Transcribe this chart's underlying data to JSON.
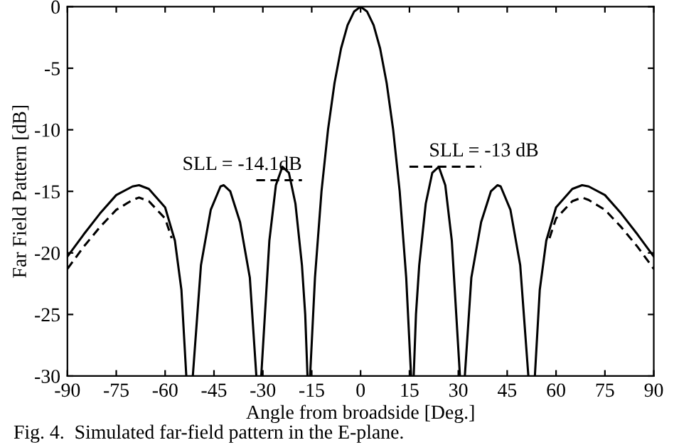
{
  "chart_data": {
    "type": "line",
    "xlabel": "Angle from broadside [Deg.]",
    "ylabel": "Far Field Pattern [dB]",
    "xlim": [
      -90,
      90
    ],
    "ylim": [
      -30,
      0
    ],
    "xticks": [
      -90,
      -75,
      -60,
      -45,
      -30,
      -15,
      0,
      15,
      30,
      45,
      60,
      75,
      90
    ],
    "yticks": [
      0,
      -5,
      -10,
      -15,
      -20,
      -25,
      -30
    ],
    "grid": false,
    "legend": false,
    "series": [
      {
        "color": "#000000",
        "line_style": "solid",
        "x": [
          -90,
          -85,
          -80,
          -75,
          -70,
          -68,
          -65,
          -60,
          -57,
          -55,
          -53.5,
          -53,
          -51.5,
          -49,
          -46,
          -43,
          -42,
          -40,
          -37,
          -34,
          -32,
          -31.5,
          -30.5,
          -28,
          -26,
          -24,
          -22,
          -20,
          -18,
          -17,
          -16.3,
          -16,
          -15.5,
          -14,
          -12,
          -10,
          -8,
          -6,
          -4,
          -2,
          0,
          2,
          4,
          6,
          8,
          10,
          12,
          14,
          15.5,
          16,
          16.3,
          17,
          18,
          20,
          22,
          24,
          26,
          28,
          30.5,
          31.5,
          32,
          34,
          37,
          40,
          42,
          43,
          46,
          49,
          51.5,
          53,
          53.5,
          55,
          57,
          60,
          65,
          68,
          70,
          75,
          80,
          85,
          90
        ],
        "values": [
          -20.3,
          -18.5,
          -16.8,
          -15.3,
          -14.6,
          -14.5,
          -14.8,
          -16.3,
          -19,
          -23,
          -30,
          null,
          -30,
          -21,
          -16.5,
          -14.6,
          -14.5,
          -15,
          -17.5,
          -22,
          -30,
          null,
          -30,
          -19,
          -14.5,
          -13,
          -13.5,
          -16,
          -21,
          -25,
          -30,
          null,
          -30,
          -22,
          -15,
          -10,
          -6.2,
          -3.4,
          -1.5,
          -0.4,
          0,
          -0.4,
          -1.5,
          -3.4,
          -6.2,
          -10,
          -15,
          -22,
          -30,
          null,
          -30,
          -25,
          -21,
          -16,
          -13.5,
          -13,
          -14.5,
          -19,
          -30,
          null,
          -30,
          -22,
          -17.5,
          -15,
          -14.5,
          -14.6,
          -16.5,
          -21,
          -30,
          null,
          -30,
          -23,
          -19,
          -16.3,
          -14.8,
          -14.5,
          -14.6,
          -15.3,
          -16.8,
          -18.5,
          -20.3
        ]
      },
      {
        "color": "#000000",
        "line_style": "dashed",
        "x": [
          -90,
          -85,
          -80,
          -75,
          -70,
          -68,
          -65,
          -60,
          -58,
          0,
          58,
          60,
          65,
          68,
          70,
          75,
          80,
          85,
          90
        ],
        "values": [
          -21.3,
          -19.5,
          -17.9,
          -16.5,
          -15.7,
          -15.5,
          -15.8,
          -17.2,
          -18.8,
          null,
          -18.8,
          -17.2,
          -15.8,
          -15.5,
          -15.7,
          -16.5,
          -17.9,
          -19.5,
          -21.3
        ]
      },
      {
        "color": "#000000",
        "line_style": "dashed",
        "x": [
          -32,
          -18
        ],
        "values": [
          -14.1,
          -14.1
        ]
      },
      {
        "color": "#000000",
        "line_style": "dashed",
        "x": [
          15,
          37
        ],
        "values": [
          -13,
          -13
        ]
      }
    ],
    "annotations": [
      "SLL = -14.1dB",
      "SLL = -13 dB",
      "Fig. 4.  Simulated far-field pattern in the E-plane."
    ]
  }
}
